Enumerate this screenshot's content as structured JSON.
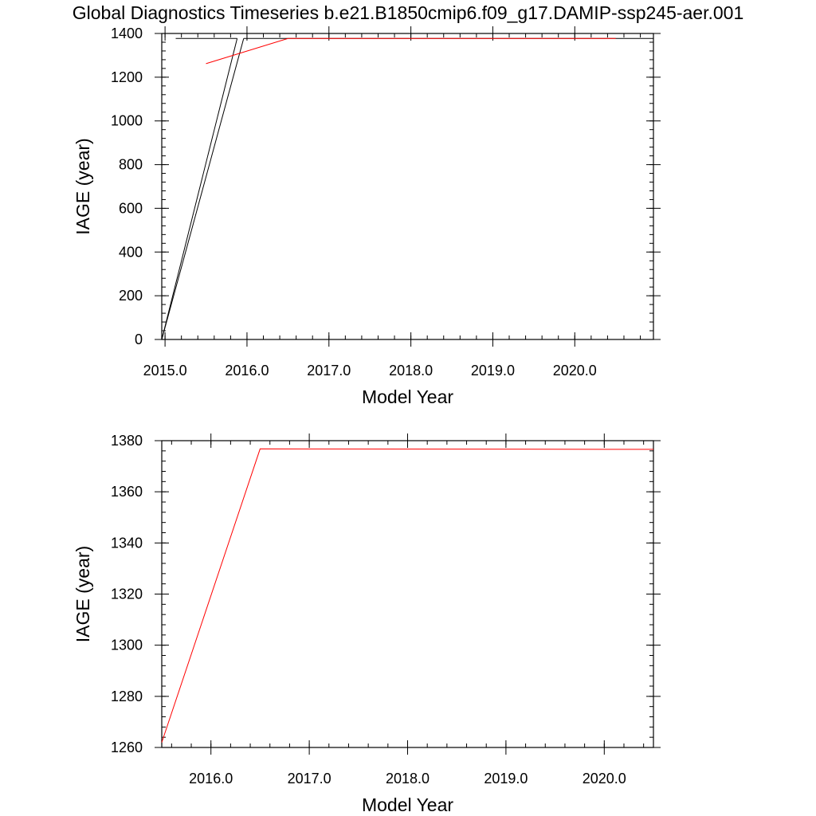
{
  "title": "Global Diagnostics Timeseries b.e21.B1850cmip6.f09_g17.DAMIP-ssp245-aer.001",
  "colors": {
    "axis": "#000000",
    "black_series": "#000000",
    "red_series": "#ff0000"
  },
  "chart_data": [
    {
      "type": "line",
      "xlabel": "Model Year",
      "ylabel": "IAGE (year)",
      "xlim": [
        2014.96,
        2020.96
      ],
      "ylim": [
        0,
        1400
      ],
      "xticks": [
        2015,
        2016,
        2017,
        2018,
        2019,
        2020
      ],
      "xtick_labels": [
        "2015.0",
        "2016.0",
        "2017.0",
        "2018.0",
        "2019.0",
        "2020.0"
      ],
      "yticks": [
        0,
        200,
        400,
        600,
        800,
        1000,
        1200,
        1400
      ],
      "ytick_labels": [
        "0",
        "200",
        "400",
        "600",
        "800",
        "1000",
        "1200",
        "1400"
      ],
      "series": [
        {
          "color": "#000000",
          "x": [
            2014.96,
            2015.88
          ],
          "y": [
            0,
            1377
          ]
        },
        {
          "color": "#000000",
          "x": [
            2015.13,
            2015.88
          ],
          "y": [
            1377,
            1377
          ]
        },
        {
          "color": "#000000",
          "x": [
            2014.96,
            2015.96
          ],
          "y": [
            0,
            1377
          ]
        },
        {
          "color": "#000000",
          "x": [
            2015.96,
            2020.96
          ],
          "y": [
            1377,
            1377
          ]
        },
        {
          "color": "#ff0000",
          "x": [
            2015.5,
            2016.5,
            2020.5
          ],
          "y": [
            1262,
            1377,
            1377
          ]
        }
      ],
      "grid": false
    },
    {
      "type": "line",
      "xlabel": "Model Year",
      "ylabel": "IAGE (year)",
      "xlim": [
        2015.5,
        2020.5
      ],
      "ylim": [
        1260,
        1380
      ],
      "xticks": [
        2016,
        2017,
        2018,
        2019,
        2020
      ],
      "xtick_labels": [
        "2016.0",
        "2017.0",
        "2018.0",
        "2019.0",
        "2020.0"
      ],
      "yticks": [
        1260,
        1280,
        1300,
        1320,
        1340,
        1360,
        1380
      ],
      "ytick_labels": [
        "1260",
        "1280",
        "1300",
        "1320",
        "1340",
        "1360",
        "1380"
      ],
      "series": [
        {
          "color": "#ff0000",
          "x": [
            2015.5,
            2016.5,
            2020.5
          ],
          "y": [
            1262,
            1376.8,
            1376.6
          ]
        }
      ],
      "grid": false
    }
  ]
}
